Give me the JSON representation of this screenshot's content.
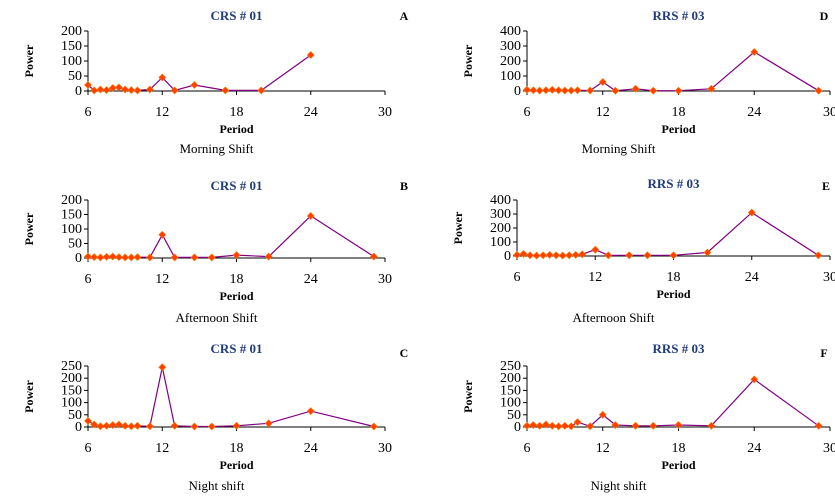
{
  "chart_data": [
    {
      "type": "line",
      "letter": "A",
      "title": "CRS # 01",
      "xlabel": "Period",
      "ylabel": "Power",
      "caption": "Morning Shift",
      "xlim": [
        6,
        30
      ],
      "ylim": [
        0,
        200
      ],
      "xticks": [
        "6",
        "12",
        "18",
        "24",
        "30"
      ],
      "yticks": [
        "0",
        "50",
        "100",
        "150",
        "200"
      ],
      "line_color": "#800080",
      "marker_color": "#ff4000",
      "x": [
        6,
        6.5,
        7,
        7.5,
        8,
        8.5,
        9,
        9.5,
        10,
        11,
        12,
        13,
        14.6,
        17.1,
        20,
        24
      ],
      "y": [
        20,
        2,
        5,
        3,
        10,
        12,
        5,
        3,
        2,
        5,
        45,
        2,
        20,
        2,
        2,
        120
      ]
    },
    {
      "type": "line",
      "letter": "D",
      "title": "RRS # 03",
      "xlabel": "Period",
      "ylabel": "Power",
      "caption": "Morning Shift",
      "xlim": [
        6,
        30
      ],
      "ylim": [
        0,
        400
      ],
      "xticks": [
        "6",
        "12",
        "18",
        "24",
        "30"
      ],
      "yticks": [
        "0",
        "100",
        "200",
        "300",
        "400"
      ],
      "line_color": "#800080",
      "marker_color": "#ff4000",
      "x": [
        6,
        6.5,
        7,
        7.5,
        8,
        8.5,
        9,
        9.5,
        10,
        11,
        12,
        13,
        14.6,
        16,
        18,
        20.6,
        24,
        29.1
      ],
      "y": [
        8,
        5,
        3,
        5,
        8,
        5,
        3,
        3,
        5,
        3,
        60,
        2,
        15,
        2,
        2,
        15,
        260,
        2
      ]
    },
    {
      "type": "line",
      "letter": "B",
      "title": "CRS # 01",
      "xlabel": "Period",
      "ylabel": "Power",
      "caption": "Afternoon Shift",
      "xlim": [
        6,
        30
      ],
      "ylim": [
        0,
        200
      ],
      "xticks": [
        "6",
        "12",
        "18",
        "24",
        "30"
      ],
      "yticks": [
        "0",
        "50",
        "100",
        "150",
        "200"
      ],
      "line_color": "#800080",
      "marker_color": "#ff4000",
      "x": [
        6,
        6.5,
        7,
        7.5,
        8,
        8.5,
        9,
        9.5,
        10,
        11,
        12,
        13,
        14.6,
        16,
        18,
        20.6,
        24,
        29.1
      ],
      "y": [
        5,
        3,
        2,
        4,
        5,
        3,
        2,
        2,
        3,
        2,
        80,
        2,
        2,
        2,
        10,
        5,
        145,
        5
      ]
    },
    {
      "type": "line",
      "letter": "E",
      "title": "RRS # 03",
      "xlabel": "Period",
      "ylabel": "Power",
      "caption": "Afternoon Shift",
      "xlim": [
        6,
        30
      ],
      "ylim": [
        0,
        400
      ],
      "xticks": [
        "6",
        "12",
        "18",
        "24",
        "30"
      ],
      "yticks": [
        "0",
        "100",
        "200",
        "300",
        "400"
      ],
      "line_color": "#800080",
      "marker_color": "#ff4000",
      "x": [
        6,
        6.5,
        7,
        7.5,
        8,
        8.5,
        9,
        9.5,
        10,
        10.5,
        11,
        12,
        13,
        14.6,
        16,
        18,
        20.6,
        24,
        29.1
      ],
      "y": [
        8,
        15,
        5,
        3,
        5,
        8,
        5,
        3,
        5,
        8,
        12,
        45,
        5,
        5,
        5,
        5,
        25,
        310,
        5
      ]
    },
    {
      "type": "line",
      "letter": "C",
      "title": "CRS # 01",
      "xlabel": "Period",
      "ylabel": "Power",
      "caption": "Night shift",
      "xlim": [
        6,
        30
      ],
      "ylim": [
        0,
        250
      ],
      "xticks": [
        "6",
        "12",
        "18",
        "24",
        "30"
      ],
      "yticks": [
        "0",
        "50",
        "100",
        "150",
        "200",
        "250"
      ],
      "line_color": "#800080",
      "marker_color": "#ff4000",
      "x": [
        6,
        6.5,
        7,
        7.5,
        8,
        8.5,
        9,
        9.5,
        10,
        11,
        12,
        13,
        14.6,
        16,
        18,
        20.6,
        24,
        29.1
      ],
      "y": [
        25,
        10,
        3,
        5,
        8,
        10,
        5,
        3,
        5,
        3,
        245,
        5,
        2,
        2,
        5,
        15,
        65,
        2
      ]
    },
    {
      "type": "line",
      "letter": "F",
      "title": "RRS # 03",
      "xlabel": "Period",
      "ylabel": "Power",
      "caption": "Night shift",
      "xlim": [
        6,
        30
      ],
      "ylim": [
        0,
        250
      ],
      "xticks": [
        "6",
        "12",
        "18",
        "24",
        "30"
      ],
      "yticks": [
        "0",
        "50",
        "100",
        "150",
        "200",
        "250"
      ],
      "line_color": "#800080",
      "marker_color": "#ff4000",
      "x": [
        6,
        6.5,
        7,
        7.5,
        8,
        8.5,
        9,
        9.5,
        10,
        11,
        12,
        13,
        14.6,
        16,
        18,
        20.6,
        24,
        29.1
      ],
      "y": [
        5,
        8,
        5,
        10,
        5,
        3,
        5,
        3,
        20,
        3,
        50,
        8,
        5,
        5,
        8,
        5,
        195,
        5
      ]
    }
  ]
}
